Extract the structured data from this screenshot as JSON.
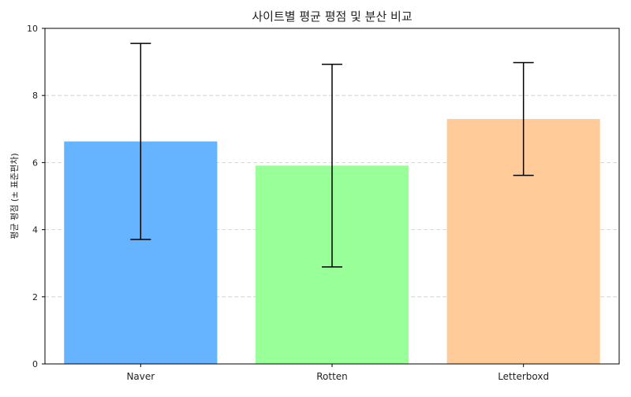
{
  "chart_data": {
    "type": "bar",
    "title": "사이트별 평균 평점 및 분산 비교",
    "xlabel": "",
    "ylabel": "평균 평점 (± 표준편차)",
    "categories": [
      "Naver",
      "Rotten",
      "Letterboxd"
    ],
    "values": [
      6.63,
      5.91,
      7.3
    ],
    "errors": [
      2.92,
      3.02,
      1.68
    ],
    "ylim": [
      0,
      10
    ],
    "yticks": [
      0,
      2,
      4,
      6,
      8,
      10
    ],
    "grid": "y-dashed",
    "colors": [
      "#66b3ff",
      "#99ff99",
      "#ffcc99"
    ]
  }
}
